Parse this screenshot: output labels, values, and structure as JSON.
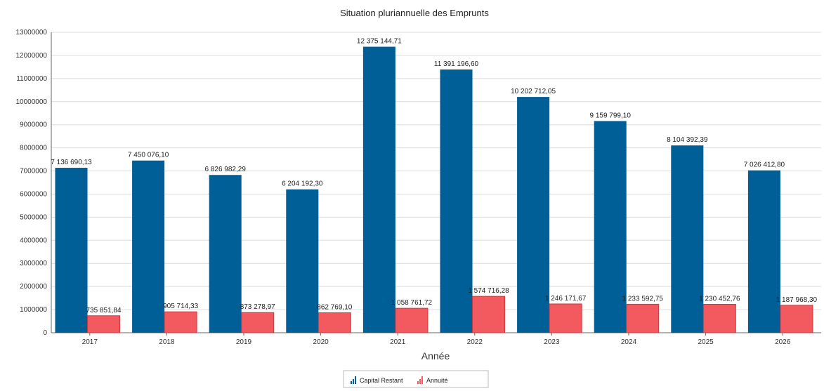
{
  "chart_data": {
    "type": "bar",
    "title": "Situation pluriannuelle des Emprunts",
    "xlabel": "Année",
    "ylabel": "",
    "categories": [
      "2017",
      "2018",
      "2019",
      "2020",
      "2021",
      "2022",
      "2023",
      "2024",
      "2025",
      "2026"
    ],
    "series": [
      {
        "name": "Capital Restant",
        "color": "#005f96",
        "values": [
          7136690.13,
          7450076.1,
          6826982.29,
          6204192.3,
          12375144.71,
          11391196.6,
          10202712.05,
          9159799.1,
          8104392.39,
          7026412.8
        ],
        "labels": [
          "7 136 690,13",
          "7 450 076,10",
          "6 826 982,29",
          "6 204 192,30",
          "12 375 144,71",
          "11 391 196,60",
          "10 202 712,05",
          "9 159 799,10",
          "8 104 392,39",
          "7 026 412,80"
        ]
      },
      {
        "name": "Annuité",
        "color": "#f25a5f",
        "values": [
          735851.84,
          905714.33,
          873278.97,
          862769.1,
          1058761.72,
          1574716.28,
          1246171.67,
          1233592.75,
          1230452.76,
          1187968.3
        ],
        "labels": [
          "735 851,84",
          "905 714,33",
          "873 278,97",
          "862 769,10",
          "1 058 761,72",
          "1 574 716,28",
          "1 246 171,67",
          "1 233 592,75",
          "1 230 452,76",
          "1 187 968,30"
        ]
      }
    ],
    "ylim": [
      0,
      13000000
    ],
    "yticks": [
      0,
      1000000,
      2000000,
      3000000,
      4000000,
      5000000,
      6000000,
      7000000,
      8000000,
      9000000,
      10000000,
      11000000,
      12000000,
      13000000
    ],
    "grid": true,
    "legend_position": "bottom-center"
  }
}
